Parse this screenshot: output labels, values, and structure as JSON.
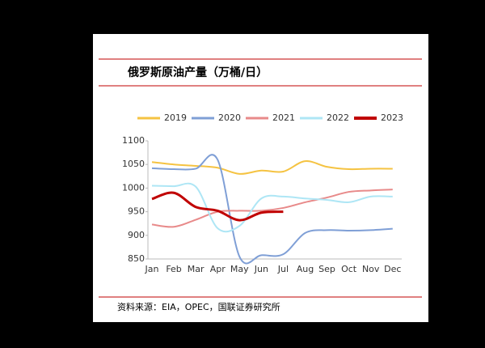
{
  "chart_data": {
    "type": "line",
    "title": "俄罗斯原油产量（万桶/日）",
    "source": "资料来源：EIA，OPEC，国联证券研究所",
    "categories": [
      "Jan",
      "Feb",
      "Mar",
      "Apr",
      "May",
      "Jun",
      "Jul",
      "Aug",
      "Sep",
      "Oct",
      "Nov",
      "Dec"
    ],
    "series": [
      {
        "name": "2019",
        "color": "#f5c342",
        "values": [
          1055,
          1050,
          1047,
          1043,
          1030,
          1037,
          1035,
          1057,
          1045,
          1040,
          1041,
          1041
        ]
      },
      {
        "name": "2020",
        "color": "#7f9fd6",
        "values": [
          1042,
          1040,
          1041,
          1060,
          855,
          858,
          860,
          905,
          911,
          910,
          911,
          914
        ]
      },
      {
        "name": "2021",
        "color": "#e88a8a",
        "values": [
          923,
          918,
          933,
          950,
          952,
          952,
          958,
          970,
          980,
          992,
          995,
          997
        ]
      },
      {
        "name": "2022",
        "color": "#aee6f5",
        "values": [
          1005,
          1004,
          1003,
          915,
          920,
          978,
          982,
          978,
          975,
          970,
          982,
          982
        ]
      },
      {
        "name": "2023",
        "color": "#c00000",
        "values": [
          977,
          990,
          960,
          952,
          932,
          948,
          950,
          null,
          null,
          null,
          null,
          null
        ]
      }
    ],
    "ylim": [
      850,
      1100
    ],
    "yticks": [
      850,
      900,
      950,
      1000,
      1050,
      1100
    ],
    "legend": "top"
  }
}
